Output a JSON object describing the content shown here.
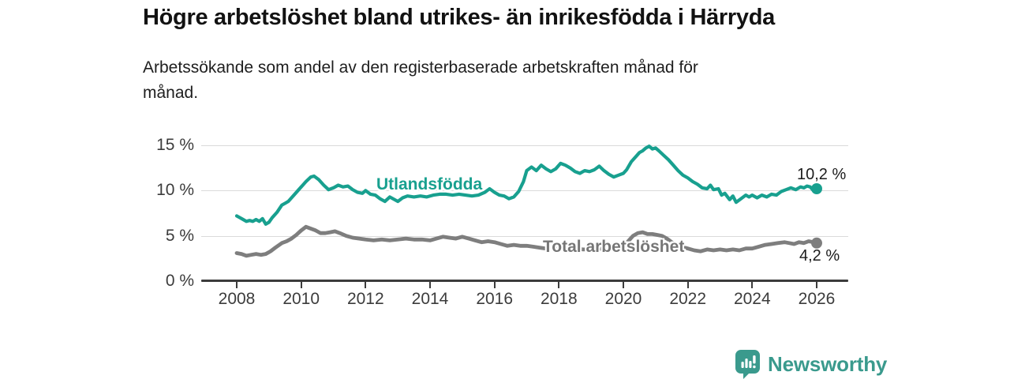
{
  "header": {
    "title": "Högre arbetslöshet bland utrikes- än inrikesfödda i Härryda",
    "subtitle_line1": "Arbetssökande som andel av den registerbaserade arbetskraften månad för",
    "subtitle_line2": "månad."
  },
  "footer": {
    "brand": "Newsworthy",
    "logo_icon": "newsworthy-bar-chart-speech-bubble-icon",
    "brand_color": "#3a9a8d"
  },
  "chart_data": {
    "type": "line",
    "title": "Högre arbetslöshet bland utrikes- än inrikesfödda i Härryda",
    "subtitle": "Arbetssökande som andel av den registerbaserade arbetskraften månad för månad.",
    "grid": "horizontal",
    "legend_position": "inline-labels-on-lines",
    "xlim": [
      2008,
      2026
    ],
    "ylim": [
      0,
      15
    ],
    "x_ticks": [
      2008,
      2010,
      2012,
      2014,
      2016,
      2018,
      2020,
      2022,
      2024,
      2026
    ],
    "y_ticks": [
      {
        "value": 0,
        "label": "0 %"
      },
      {
        "value": 5,
        "label": "5 %"
      },
      {
        "value": 10,
        "label": "10 %"
      },
      {
        "value": 15,
        "label": "15 %"
      }
    ],
    "series": [
      {
        "name": "Utlandsfödda",
        "color": "#18a08f",
        "end_value": 10.2,
        "end_label": "10,2 %",
        "points": [
          [
            2008.0,
            7.2
          ],
          [
            2008.1,
            7.0
          ],
          [
            2008.2,
            6.8
          ],
          [
            2008.3,
            6.6
          ],
          [
            2008.4,
            6.7
          ],
          [
            2008.5,
            6.6
          ],
          [
            2008.6,
            6.8
          ],
          [
            2008.7,
            6.6
          ],
          [
            2008.8,
            6.9
          ],
          [
            2008.9,
            6.3
          ],
          [
            2009.0,
            6.5
          ],
          [
            2009.1,
            7.0
          ],
          [
            2009.25,
            7.6
          ],
          [
            2009.4,
            8.4
          ],
          [
            2009.5,
            8.6
          ],
          [
            2009.6,
            8.8
          ],
          [
            2009.75,
            9.4
          ],
          [
            2009.9,
            10.0
          ],
          [
            2010.0,
            10.4
          ],
          [
            2010.15,
            11.0
          ],
          [
            2010.3,
            11.5
          ],
          [
            2010.4,
            11.6
          ],
          [
            2010.55,
            11.2
          ],
          [
            2010.7,
            10.6
          ],
          [
            2010.85,
            10.1
          ],
          [
            2011.0,
            10.3
          ],
          [
            2011.15,
            10.6
          ],
          [
            2011.3,
            10.4
          ],
          [
            2011.45,
            10.5
          ],
          [
            2011.6,
            10.1
          ],
          [
            2011.75,
            9.8
          ],
          [
            2011.9,
            9.7
          ],
          [
            2012.0,
            10.0
          ],
          [
            2012.15,
            9.6
          ],
          [
            2012.3,
            9.5
          ],
          [
            2012.45,
            9.1
          ],
          [
            2012.6,
            8.8
          ],
          [
            2012.75,
            9.3
          ],
          [
            2012.9,
            9.0
          ],
          [
            2013.0,
            8.8
          ],
          [
            2013.15,
            9.2
          ],
          [
            2013.3,
            9.4
          ],
          [
            2013.5,
            9.3
          ],
          [
            2013.7,
            9.4
          ],
          [
            2013.9,
            9.3
          ],
          [
            2014.1,
            9.5
          ],
          [
            2014.3,
            9.6
          ],
          [
            2014.5,
            9.6
          ],
          [
            2014.7,
            9.5
          ],
          [
            2014.9,
            9.6
          ],
          [
            2015.1,
            9.5
          ],
          [
            2015.3,
            9.4
          ],
          [
            2015.5,
            9.5
          ],
          [
            2015.7,
            9.8
          ],
          [
            2015.85,
            10.2
          ],
          [
            2016.0,
            9.8
          ],
          [
            2016.15,
            9.5
          ],
          [
            2016.3,
            9.4
          ],
          [
            2016.45,
            9.1
          ],
          [
            2016.6,
            9.3
          ],
          [
            2016.75,
            9.9
          ],
          [
            2016.9,
            11.0
          ],
          [
            2017.0,
            12.2
          ],
          [
            2017.15,
            12.6
          ],
          [
            2017.3,
            12.2
          ],
          [
            2017.45,
            12.8
          ],
          [
            2017.6,
            12.4
          ],
          [
            2017.75,
            12.1
          ],
          [
            2017.9,
            12.4
          ],
          [
            2018.05,
            13.0
          ],
          [
            2018.2,
            12.8
          ],
          [
            2018.35,
            12.5
          ],
          [
            2018.5,
            12.1
          ],
          [
            2018.65,
            11.9
          ],
          [
            2018.8,
            12.2
          ],
          [
            2018.95,
            12.1
          ],
          [
            2019.1,
            12.3
          ],
          [
            2019.25,
            12.7
          ],
          [
            2019.4,
            12.2
          ],
          [
            2019.55,
            11.8
          ],
          [
            2019.7,
            11.5
          ],
          [
            2019.85,
            11.7
          ],
          [
            2020.0,
            11.9
          ],
          [
            2020.1,
            12.3
          ],
          [
            2020.25,
            13.2
          ],
          [
            2020.4,
            13.8
          ],
          [
            2020.5,
            14.2
          ],
          [
            2020.6,
            14.4
          ],
          [
            2020.7,
            14.7
          ],
          [
            2020.8,
            14.9
          ],
          [
            2020.9,
            14.6
          ],
          [
            2021.0,
            14.7
          ],
          [
            2021.1,
            14.4
          ],
          [
            2021.25,
            13.9
          ],
          [
            2021.4,
            13.4
          ],
          [
            2021.55,
            12.8
          ],
          [
            2021.7,
            12.2
          ],
          [
            2021.85,
            11.7
          ],
          [
            2022.0,
            11.4
          ],
          [
            2022.15,
            11.0
          ],
          [
            2022.3,
            10.7
          ],
          [
            2022.45,
            10.3
          ],
          [
            2022.6,
            10.2
          ],
          [
            2022.7,
            10.6
          ],
          [
            2022.8,
            10.1
          ],
          [
            2022.95,
            10.2
          ],
          [
            2023.05,
            9.5
          ],
          [
            2023.15,
            9.7
          ],
          [
            2023.3,
            9.0
          ],
          [
            2023.4,
            9.4
          ],
          [
            2023.5,
            8.7
          ],
          [
            2023.65,
            9.1
          ],
          [
            2023.8,
            9.5
          ],
          [
            2023.9,
            9.3
          ],
          [
            2024.0,
            9.5
          ],
          [
            2024.15,
            9.2
          ],
          [
            2024.3,
            9.5
          ],
          [
            2024.45,
            9.3
          ],
          [
            2024.6,
            9.6
          ],
          [
            2024.75,
            9.5
          ],
          [
            2024.9,
            9.9
          ],
          [
            2025.05,
            10.1
          ],
          [
            2025.2,
            10.3
          ],
          [
            2025.35,
            10.1
          ],
          [
            2025.5,
            10.4
          ],
          [
            2025.6,
            10.3
          ],
          [
            2025.7,
            10.5
          ],
          [
            2025.8,
            10.4
          ],
          [
            2025.9,
            10.0
          ],
          [
            2026.0,
            10.2
          ]
        ]
      },
      {
        "name": "Total arbetslöshet",
        "color": "#7e7e7e",
        "end_value": 4.2,
        "end_label": "4,2 %",
        "points": [
          [
            2008.0,
            3.1
          ],
          [
            2008.15,
            3.0
          ],
          [
            2008.3,
            2.8
          ],
          [
            2008.45,
            2.9
          ],
          [
            2008.6,
            3.0
          ],
          [
            2008.75,
            2.9
          ],
          [
            2008.9,
            3.0
          ],
          [
            2009.05,
            3.3
          ],
          [
            2009.2,
            3.7
          ],
          [
            2009.4,
            4.2
          ],
          [
            2009.55,
            4.4
          ],
          [
            2009.7,
            4.7
          ],
          [
            2009.85,
            5.1
          ],
          [
            2010.0,
            5.6
          ],
          [
            2010.15,
            6.0
          ],
          [
            2010.3,
            5.8
          ],
          [
            2010.45,
            5.6
          ],
          [
            2010.6,
            5.3
          ],
          [
            2010.75,
            5.3
          ],
          [
            2010.9,
            5.4
          ],
          [
            2011.05,
            5.5
          ],
          [
            2011.2,
            5.3
          ],
          [
            2011.4,
            5.0
          ],
          [
            2011.6,
            4.8
          ],
          [
            2011.8,
            4.7
          ],
          [
            2012.0,
            4.6
          ],
          [
            2012.25,
            4.5
          ],
          [
            2012.5,
            4.6
          ],
          [
            2012.75,
            4.5
          ],
          [
            2013.0,
            4.6
          ],
          [
            2013.25,
            4.7
          ],
          [
            2013.5,
            4.6
          ],
          [
            2013.75,
            4.6
          ],
          [
            2014.0,
            4.5
          ],
          [
            2014.2,
            4.7
          ],
          [
            2014.4,
            4.9
          ],
          [
            2014.6,
            4.8
          ],
          [
            2014.8,
            4.7
          ],
          [
            2015.0,
            4.9
          ],
          [
            2015.2,
            4.7
          ],
          [
            2015.4,
            4.5
          ],
          [
            2015.6,
            4.3
          ],
          [
            2015.8,
            4.4
          ],
          [
            2016.0,
            4.3
          ],
          [
            2016.2,
            4.1
          ],
          [
            2016.4,
            3.9
          ],
          [
            2016.6,
            4.0
          ],
          [
            2016.8,
            3.9
          ],
          [
            2017.0,
            3.9
          ],
          [
            2017.2,
            3.8
          ],
          [
            2017.4,
            3.7
          ],
          [
            2017.6,
            3.6
          ],
          [
            2017.8,
            3.7
          ],
          [
            2018.0,
            3.6
          ],
          [
            2018.25,
            3.5
          ],
          [
            2018.5,
            3.6
          ],
          [
            2018.75,
            3.5
          ],
          [
            2019.0,
            3.5
          ],
          [
            2019.25,
            3.6
          ],
          [
            2019.5,
            3.5
          ],
          [
            2019.75,
            3.6
          ],
          [
            2020.0,
            3.8
          ],
          [
            2020.15,
            4.4
          ],
          [
            2020.3,
            5.0
          ],
          [
            2020.45,
            5.3
          ],
          [
            2020.6,
            5.4
          ],
          [
            2020.75,
            5.2
          ],
          [
            2020.9,
            5.2
          ],
          [
            2021.05,
            5.1
          ],
          [
            2021.2,
            5.0
          ],
          [
            2021.35,
            4.7
          ],
          [
            2021.5,
            4.3
          ],
          [
            2021.65,
            4.0
          ],
          [
            2021.8,
            3.8
          ],
          [
            2022.0,
            3.6
          ],
          [
            2022.2,
            3.4
          ],
          [
            2022.4,
            3.3
          ],
          [
            2022.6,
            3.5
          ],
          [
            2022.8,
            3.4
          ],
          [
            2023.0,
            3.5
          ],
          [
            2023.2,
            3.4
          ],
          [
            2023.4,
            3.5
          ],
          [
            2023.6,
            3.4
          ],
          [
            2023.8,
            3.6
          ],
          [
            2024.0,
            3.6
          ],
          [
            2024.2,
            3.8
          ],
          [
            2024.4,
            4.0
          ],
          [
            2024.6,
            4.1
          ],
          [
            2024.8,
            4.2
          ],
          [
            2025.0,
            4.3
          ],
          [
            2025.15,
            4.2
          ],
          [
            2025.3,
            4.1
          ],
          [
            2025.45,
            4.3
          ],
          [
            2025.6,
            4.2
          ],
          [
            2025.75,
            4.4
          ],
          [
            2025.9,
            4.3
          ],
          [
            2026.0,
            4.2
          ]
        ]
      }
    ]
  }
}
